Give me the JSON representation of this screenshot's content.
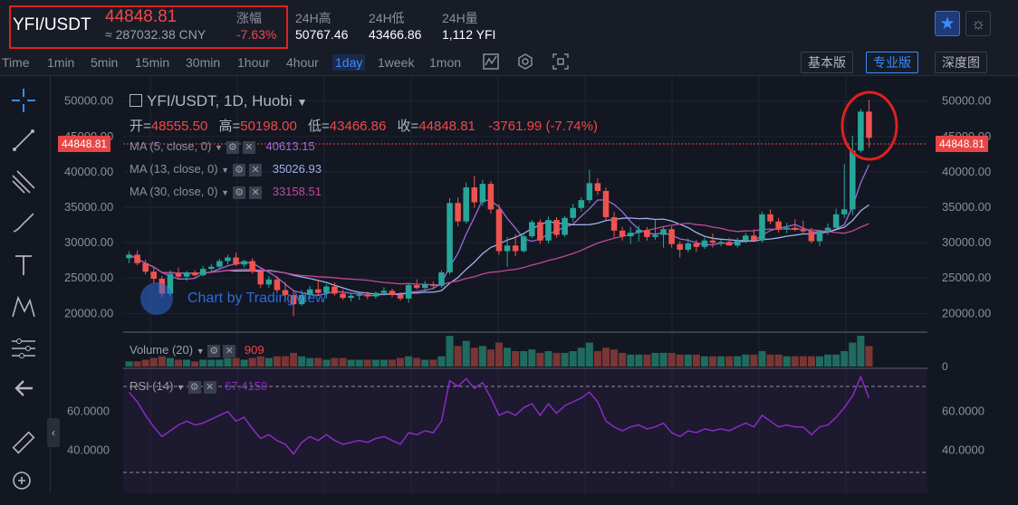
{
  "header": {
    "pair": "YFI/USDT",
    "price": "44848.81",
    "cny": "≈ 287032.38 CNY",
    "change_label": "涨幅",
    "change": "-7.63%",
    "high_label": "24H高",
    "high": "50767.46",
    "low_label": "24H低",
    "low": "43466.86",
    "vol_label": "24H量",
    "vol": "1,112 YFI",
    "star_icon": "★",
    "theme_icon": "☼"
  },
  "toolbar": {
    "timeframes": [
      "Time",
      "1min",
      "5min",
      "15min",
      "30min",
      "1hour",
      "4hour",
      "1day",
      "1week",
      "1mon"
    ],
    "active": "1day",
    "modes": [
      "基本版",
      "专业版",
      "深度图"
    ],
    "active_mode": "专业版"
  },
  "chart": {
    "title": "YFI/USDT, 1D, Huobi",
    "ohlc": {
      "open_label": "开=",
      "open": "48555.50",
      "high_label": "高=",
      "high": "50198.00",
      "low_label": "低=",
      "low": "43466.86",
      "close_label": "收=",
      "close": "44848.81",
      "change": "-3761.99 (-7.74%)"
    },
    "current_price_tag": "44848.81",
    "ma": [
      {
        "label": "MA (5, close, 0)",
        "value": "40613.15",
        "color": "#9b6bd8"
      },
      {
        "label": "MA (13, close, 0)",
        "value": "35026.93",
        "color": "#a0b0e8"
      },
      {
        "label": "MA (30, close, 0)",
        "value": "33158.51",
        "color": "#c04a9a"
      }
    ],
    "volume_label": "Volume (20)",
    "volume_value": "909",
    "rsi_label": "RSI (14)",
    "rsi_value": "67.4150",
    "watermark": "Chart by TradingView",
    "y_ticks": [
      "50000.00",
      "45000.00",
      "40000.00",
      "35000.00",
      "30000.00",
      "25000.00",
      "20000.00"
    ],
    "rsi_ticks": [
      "60.0000",
      "40.0000"
    ],
    "volume_tick": "0"
  },
  "colors": {
    "up": "#26a69a",
    "down": "#ef5350",
    "accent": "#3a8cff",
    "highlight": "#e02020"
  },
  "chart_data": {
    "type": "candlestick",
    "ylim": [
      18000,
      52000
    ],
    "candles": [
      {
        "o": 27800,
        "h": 28800,
        "l": 27100,
        "c": 28300
      },
      {
        "o": 28300,
        "h": 28900,
        "l": 26800,
        "c": 27100
      },
      {
        "o": 27100,
        "h": 27600,
        "l": 25500,
        "c": 25900
      },
      {
        "o": 25900,
        "h": 26500,
        "l": 24300,
        "c": 24900
      },
      {
        "o": 24900,
        "h": 25300,
        "l": 22300,
        "c": 22800
      },
      {
        "o": 22800,
        "h": 26100,
        "l": 22500,
        "c": 25600
      },
      {
        "o": 25600,
        "h": 26500,
        "l": 24800,
        "c": 25200
      },
      {
        "o": 25200,
        "h": 26000,
        "l": 24600,
        "c": 25800
      },
      {
        "o": 25800,
        "h": 26100,
        "l": 25100,
        "c": 25400
      },
      {
        "o": 25400,
        "h": 26700,
        "l": 25200,
        "c": 26300
      },
      {
        "o": 26300,
        "h": 27000,
        "l": 25900,
        "c": 26600
      },
      {
        "o": 26600,
        "h": 27700,
        "l": 26300,
        "c": 27400
      },
      {
        "o": 27400,
        "h": 28300,
        "l": 26900,
        "c": 27900
      },
      {
        "o": 27900,
        "h": 28600,
        "l": 26700,
        "c": 26900
      },
      {
        "o": 26900,
        "h": 27600,
        "l": 26500,
        "c": 27400
      },
      {
        "o": 27400,
        "h": 27800,
        "l": 25600,
        "c": 25900
      },
      {
        "o": 25900,
        "h": 26400,
        "l": 23600,
        "c": 24100
      },
      {
        "o": 24100,
        "h": 25300,
        "l": 23600,
        "c": 24800
      },
      {
        "o": 24800,
        "h": 25300,
        "l": 22900,
        "c": 23300
      },
      {
        "o": 23300,
        "h": 24400,
        "l": 22100,
        "c": 22600
      },
      {
        "o": 22600,
        "h": 23200,
        "l": 19600,
        "c": 21300
      },
      {
        "o": 21300,
        "h": 23300,
        "l": 21100,
        "c": 22600
      },
      {
        "o": 22600,
        "h": 23900,
        "l": 22200,
        "c": 23400
      },
      {
        "o": 23400,
        "h": 24700,
        "l": 22600,
        "c": 22900
      },
      {
        "o": 22900,
        "h": 24100,
        "l": 22100,
        "c": 23800
      },
      {
        "o": 23800,
        "h": 24400,
        "l": 22500,
        "c": 22800
      },
      {
        "o": 22800,
        "h": 23400,
        "l": 21900,
        "c": 22200
      },
      {
        "o": 22200,
        "h": 22800,
        "l": 21700,
        "c": 22500
      },
      {
        "o": 22500,
        "h": 23000,
        "l": 21900,
        "c": 22700
      },
      {
        "o": 22700,
        "h": 23100,
        "l": 22000,
        "c": 22400
      },
      {
        "o": 22400,
        "h": 23100,
        "l": 22100,
        "c": 22900
      },
      {
        "o": 22900,
        "h": 23700,
        "l": 22500,
        "c": 23200
      },
      {
        "o": 23200,
        "h": 23500,
        "l": 22300,
        "c": 22600
      },
      {
        "o": 22600,
        "h": 23000,
        "l": 21800,
        "c": 22100
      },
      {
        "o": 22100,
        "h": 24300,
        "l": 21500,
        "c": 24000
      },
      {
        "o": 24000,
        "h": 24800,
        "l": 23400,
        "c": 23600
      },
      {
        "o": 23600,
        "h": 24600,
        "l": 23000,
        "c": 24100
      },
      {
        "o": 24100,
        "h": 24500,
        "l": 23400,
        "c": 23900
      },
      {
        "o": 23900,
        "h": 26100,
        "l": 23600,
        "c": 25800
      },
      {
        "o": 25800,
        "h": 36300,
        "l": 25500,
        "c": 35600
      },
      {
        "o": 35600,
        "h": 36400,
        "l": 32300,
        "c": 33000
      },
      {
        "o": 33000,
        "h": 38500,
        "l": 32700,
        "c": 37800
      },
      {
        "o": 37800,
        "h": 39400,
        "l": 34900,
        "c": 35700
      },
      {
        "o": 35700,
        "h": 38900,
        "l": 35200,
        "c": 38300
      },
      {
        "o": 38300,
        "h": 38700,
        "l": 34100,
        "c": 34700
      },
      {
        "o": 34700,
        "h": 35400,
        "l": 28300,
        "c": 28800
      },
      {
        "o": 28800,
        "h": 30800,
        "l": 26600,
        "c": 29600
      },
      {
        "o": 29600,
        "h": 31200,
        "l": 28100,
        "c": 28800
      },
      {
        "o": 28800,
        "h": 31400,
        "l": 28600,
        "c": 30900
      },
      {
        "o": 30900,
        "h": 33200,
        "l": 30600,
        "c": 32900
      },
      {
        "o": 32900,
        "h": 33300,
        "l": 29800,
        "c": 30300
      },
      {
        "o": 30300,
        "h": 33700,
        "l": 29900,
        "c": 33200
      },
      {
        "o": 33200,
        "h": 33600,
        "l": 30700,
        "c": 31100
      },
      {
        "o": 31100,
        "h": 33800,
        "l": 30800,
        "c": 33500
      },
      {
        "o": 33500,
        "h": 35500,
        "l": 32900,
        "c": 34900
      },
      {
        "o": 34900,
        "h": 36400,
        "l": 34400,
        "c": 36000
      },
      {
        "o": 36000,
        "h": 40300,
        "l": 35600,
        "c": 38400
      },
      {
        "o": 38400,
        "h": 39100,
        "l": 36700,
        "c": 37300
      },
      {
        "o": 37300,
        "h": 37800,
        "l": 33200,
        "c": 33600
      },
      {
        "o": 33600,
        "h": 34300,
        "l": 30700,
        "c": 31700
      },
      {
        "o": 31700,
        "h": 32200,
        "l": 30300,
        "c": 30900
      },
      {
        "o": 30900,
        "h": 32200,
        "l": 29800,
        "c": 31400
      },
      {
        "o": 31400,
        "h": 32400,
        "l": 30200,
        "c": 31800
      },
      {
        "o": 31800,
        "h": 32200,
        "l": 30300,
        "c": 30800
      },
      {
        "o": 30800,
        "h": 33200,
        "l": 30400,
        "c": 31100
      },
      {
        "o": 31100,
        "h": 32300,
        "l": 29300,
        "c": 31900
      },
      {
        "o": 31900,
        "h": 32300,
        "l": 29300,
        "c": 29800
      },
      {
        "o": 29800,
        "h": 30200,
        "l": 27900,
        "c": 29000
      },
      {
        "o": 29000,
        "h": 30600,
        "l": 28600,
        "c": 29900
      },
      {
        "o": 29900,
        "h": 30400,
        "l": 28700,
        "c": 29400
      },
      {
        "o": 29400,
        "h": 30700,
        "l": 29100,
        "c": 30300
      },
      {
        "o": 30300,
        "h": 31300,
        "l": 29300,
        "c": 30000
      },
      {
        "o": 30000,
        "h": 30400,
        "l": 29500,
        "c": 30100
      },
      {
        "o": 30100,
        "h": 30700,
        "l": 29600,
        "c": 29600
      },
      {
        "o": 29600,
        "h": 30700,
        "l": 29300,
        "c": 30300
      },
      {
        "o": 30300,
        "h": 31400,
        "l": 29900,
        "c": 31000
      },
      {
        "o": 31000,
        "h": 31900,
        "l": 30400,
        "c": 30300
      },
      {
        "o": 30300,
        "h": 34400,
        "l": 30000,
        "c": 34000
      },
      {
        "o": 34000,
        "h": 34700,
        "l": 32600,
        "c": 33000
      },
      {
        "o": 33000,
        "h": 33500,
        "l": 31400,
        "c": 31900
      },
      {
        "o": 31900,
        "h": 32800,
        "l": 31300,
        "c": 32100
      },
      {
        "o": 32100,
        "h": 33300,
        "l": 31600,
        "c": 31800
      },
      {
        "o": 31800,
        "h": 33100,
        "l": 31300,
        "c": 31600
      },
      {
        "o": 31600,
        "h": 32100,
        "l": 29900,
        "c": 30200
      },
      {
        "o": 30200,
        "h": 31800,
        "l": 29500,
        "c": 31700
      },
      {
        "o": 31700,
        "h": 32700,
        "l": 31100,
        "c": 32100
      },
      {
        "o": 32100,
        "h": 34800,
        "l": 31800,
        "c": 34000
      },
      {
        "o": 34000,
        "h": 41100,
        "l": 33500,
        "c": 34700
      },
      {
        "o": 34700,
        "h": 45100,
        "l": 33900,
        "c": 43000
      },
      {
        "o": 43000,
        "h": 48900,
        "l": 42700,
        "c": 48500
      },
      {
        "o": 48500,
        "h": 50200,
        "l": 43400,
        "c": 44800
      }
    ],
    "volume": [
      3,
      3,
      4,
      5,
      6,
      5,
      4,
      4,
      3,
      4,
      4,
      4,
      5,
      5,
      4,
      5,
      6,
      5,
      6,
      6,
      8,
      6,
      5,
      5,
      4,
      5,
      5,
      4,
      4,
      4,
      4,
      4,
      4,
      5,
      6,
      5,
      4,
      4,
      6,
      18,
      12,
      15,
      11,
      12,
      10,
      14,
      11,
      9,
      9,
      10,
      8,
      9,
      8,
      8,
      9,
      11,
      14,
      9,
      11,
      10,
      8,
      7,
      7,
      7,
      8,
      8,
      8,
      7,
      7,
      7,
      6,
      6,
      6,
      6,
      6,
      7,
      7,
      9,
      7,
      7,
      6,
      6,
      6,
      6,
      6,
      7,
      7,
      9,
      14,
      18,
      12
    ],
    "rsi": [
      70,
      65,
      58,
      52,
      47,
      50,
      53,
      55,
      53,
      54,
      56,
      58,
      60,
      55,
      57,
      51,
      46,
      48,
      45,
      43,
      38,
      44,
      47,
      45,
      48,
      45,
      43,
      44,
      45,
      44,
      46,
      47,
      45,
      43,
      49,
      48,
      50,
      49,
      55,
      76,
      73,
      77,
      72,
      75,
      67,
      58,
      60,
      58,
      62,
      64,
      58,
      64,
      59,
      63,
      65,
      67,
      70,
      65,
      55,
      52,
      50,
      52,
      53,
      51,
      52,
      54,
      49,
      47,
      50,
      49,
      51,
      50,
      51,
      50,
      52,
      54,
      52,
      58,
      55,
      52,
      53,
      52,
      52,
      48,
      52,
      53,
      57,
      62,
      68,
      78,
      67
    ]
  }
}
